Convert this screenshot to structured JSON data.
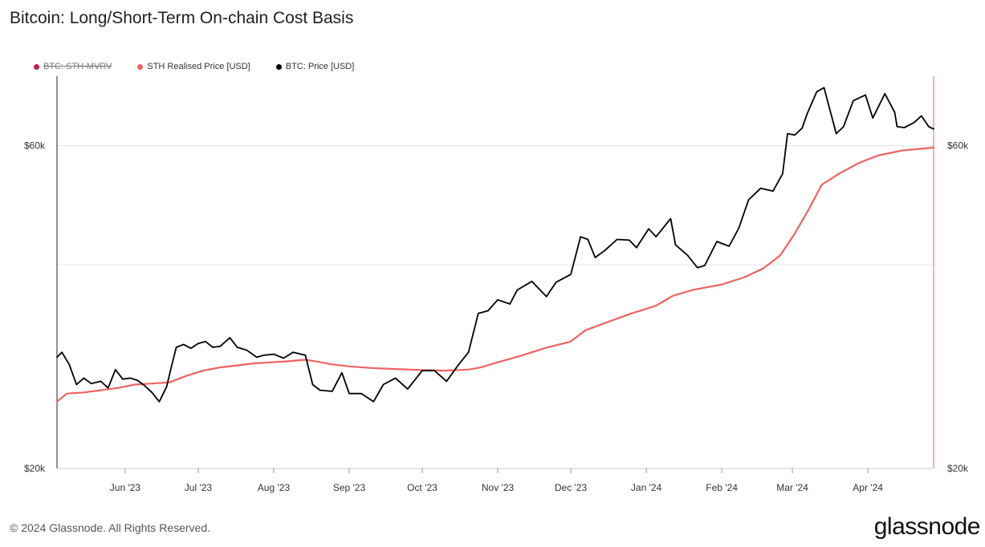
{
  "title": "Bitcoin: Long/Short-Term On-chain Cost Basis",
  "legend": [
    {
      "label": "BTC: STH-MVRV",
      "color": "#c2185b",
      "disabled": true
    },
    {
      "label": "STH Realised Price [USD]",
      "color": "#f06262",
      "disabled": false
    },
    {
      "label": "BTC: Price [USD]",
      "color": "#000000",
      "disabled": false
    }
  ],
  "footer": "© 2024 Glassnode. All Rights Reserved.",
  "brand": "glassnode",
  "chart_data": {
    "type": "line",
    "y_scale": "log",
    "ylim": [
      20000,
      76000
    ],
    "y_ticks": [
      {
        "value": 20000,
        "label": "$20k"
      },
      {
        "value": 60000,
        "label": "$60k"
      }
    ],
    "xlim": [
      "2023-05-04",
      "2024-04-28"
    ],
    "x_ticks": [
      {
        "date": "2023-06-01",
        "label": "Jun '23"
      },
      {
        "date": "2023-07-01",
        "label": "Jul '23"
      },
      {
        "date": "2023-08-01",
        "label": "Aug '23"
      },
      {
        "date": "2023-09-01",
        "label": "Sep '23"
      },
      {
        "date": "2023-10-01",
        "label": "Oct '23"
      },
      {
        "date": "2023-11-01",
        "label": "Nov '23"
      },
      {
        "date": "2023-12-01",
        "label": "Dec '23"
      },
      {
        "date": "2024-01-01",
        "label": "Jan '24"
      },
      {
        "date": "2024-02-01",
        "label": "Feb '24"
      },
      {
        "date": "2024-03-01",
        "label": "Mar '24"
      },
      {
        "date": "2024-04-01",
        "label": "Apr '24"
      }
    ],
    "grid": true,
    "legend_position": "top-left",
    "series": [
      {
        "name": "STH Realised Price [USD]",
        "color": "#f06262",
        "points": [
          [
            "2023-05-04",
            25100
          ],
          [
            "2023-05-08",
            25800
          ],
          [
            "2023-05-15",
            25900
          ],
          [
            "2023-05-22",
            26100
          ],
          [
            "2023-05-29",
            26300
          ],
          [
            "2023-06-05",
            26600
          ],
          [
            "2023-06-12",
            26700
          ],
          [
            "2023-06-19",
            26800
          ],
          [
            "2023-06-26",
            27400
          ],
          [
            "2023-07-03",
            27900
          ],
          [
            "2023-07-10",
            28200
          ],
          [
            "2023-07-17",
            28400
          ],
          [
            "2023-07-24",
            28600
          ],
          [
            "2023-07-31",
            28700
          ],
          [
            "2023-08-07",
            28800
          ],
          [
            "2023-08-14",
            28950
          ],
          [
            "2023-08-18",
            28800
          ],
          [
            "2023-08-25",
            28500
          ],
          [
            "2023-09-01",
            28300
          ],
          [
            "2023-09-10",
            28150
          ],
          [
            "2023-09-20",
            28050
          ],
          [
            "2023-10-01",
            27950
          ],
          [
            "2023-10-10",
            27900
          ],
          [
            "2023-10-20",
            28000
          ],
          [
            "2023-10-25",
            28200
          ],
          [
            "2023-11-01",
            28700
          ],
          [
            "2023-11-10",
            29300
          ],
          [
            "2023-11-20",
            30100
          ],
          [
            "2023-12-01",
            30800
          ],
          [
            "2023-12-07",
            32000
          ],
          [
            "2023-12-15",
            32800
          ],
          [
            "2023-12-25",
            33800
          ],
          [
            "2024-01-05",
            34800
          ],
          [
            "2024-01-12",
            36000
          ],
          [
            "2024-01-20",
            36700
          ],
          [
            "2024-02-01",
            37400
          ],
          [
            "2024-02-10",
            38300
          ],
          [
            "2024-02-18",
            39500
          ],
          [
            "2024-02-25",
            41300
          ],
          [
            "2024-03-02",
            44500
          ],
          [
            "2024-03-08",
            48500
          ],
          [
            "2024-03-13",
            52500
          ],
          [
            "2024-03-20",
            54500
          ],
          [
            "2024-03-28",
            56500
          ],
          [
            "2024-04-05",
            58000
          ],
          [
            "2024-04-15",
            59000
          ],
          [
            "2024-04-28",
            59600
          ]
        ]
      },
      {
        "name": "BTC: Price [USD]",
        "color": "#000000",
        "points": [
          [
            "2023-05-04",
            29200
          ],
          [
            "2023-05-06",
            29700
          ],
          [
            "2023-05-09",
            28500
          ],
          [
            "2023-05-12",
            26600
          ],
          [
            "2023-05-15",
            27200
          ],
          [
            "2023-05-18",
            26700
          ],
          [
            "2023-05-22",
            26900
          ],
          [
            "2023-05-25",
            26300
          ],
          [
            "2023-05-28",
            28000
          ],
          [
            "2023-05-31",
            27100
          ],
          [
            "2023-06-03",
            27200
          ],
          [
            "2023-06-06",
            27000
          ],
          [
            "2023-06-09",
            26500
          ],
          [
            "2023-06-12",
            25900
          ],
          [
            "2023-06-15",
            25100
          ],
          [
            "2023-06-18",
            26400
          ],
          [
            "2023-06-20",
            28300
          ],
          [
            "2023-06-22",
            30200
          ],
          [
            "2023-06-25",
            30500
          ],
          [
            "2023-06-28",
            30100
          ],
          [
            "2023-07-01",
            30600
          ],
          [
            "2023-07-04",
            30800
          ],
          [
            "2023-07-07",
            30200
          ],
          [
            "2023-07-10",
            30300
          ],
          [
            "2023-07-14",
            31200
          ],
          [
            "2023-07-17",
            30200
          ],
          [
            "2023-07-21",
            29900
          ],
          [
            "2023-07-25",
            29200
          ],
          [
            "2023-07-28",
            29400
          ],
          [
            "2023-08-01",
            29500
          ],
          [
            "2023-08-05",
            29100
          ],
          [
            "2023-08-09",
            29700
          ],
          [
            "2023-08-14",
            29400
          ],
          [
            "2023-08-17",
            26600
          ],
          [
            "2023-08-20",
            26100
          ],
          [
            "2023-08-25",
            26000
          ],
          [
            "2023-08-29",
            27700
          ],
          [
            "2023-09-01",
            25800
          ],
          [
            "2023-09-06",
            25800
          ],
          [
            "2023-09-11",
            25100
          ],
          [
            "2023-09-15",
            26600
          ],
          [
            "2023-09-20",
            27200
          ],
          [
            "2023-09-25",
            26200
          ],
          [
            "2023-10-01",
            27900
          ],
          [
            "2023-10-06",
            27900
          ],
          [
            "2023-10-11",
            26900
          ],
          [
            "2023-10-16",
            28500
          ],
          [
            "2023-10-20",
            29700
          ],
          [
            "2023-10-24",
            33900
          ],
          [
            "2023-10-28",
            34200
          ],
          [
            "2023-11-01",
            35500
          ],
          [
            "2023-11-06",
            35000
          ],
          [
            "2023-11-09",
            36700
          ],
          [
            "2023-11-15",
            37800
          ],
          [
            "2023-11-21",
            35900
          ],
          [
            "2023-11-25",
            37700
          ],
          [
            "2023-12-01",
            38700
          ],
          [
            "2023-12-05",
            44000
          ],
          [
            "2023-12-08",
            43600
          ],
          [
            "2023-12-11",
            41000
          ],
          [
            "2023-12-15",
            42000
          ],
          [
            "2023-12-20",
            43600
          ],
          [
            "2023-12-25",
            43500
          ],
          [
            "2023-12-28",
            42400
          ],
          [
            "2024-01-02",
            45200
          ],
          [
            "2024-01-05",
            44000
          ],
          [
            "2024-01-11",
            46800
          ],
          [
            "2024-01-13",
            42800
          ],
          [
            "2024-01-18",
            41300
          ],
          [
            "2024-01-22",
            39600
          ],
          [
            "2024-01-25",
            39900
          ],
          [
            "2024-01-30",
            43300
          ],
          [
            "2024-02-04",
            42600
          ],
          [
            "2024-02-08",
            45300
          ],
          [
            "2024-02-12",
            49900
          ],
          [
            "2024-02-17",
            51900
          ],
          [
            "2024-02-22",
            51400
          ],
          [
            "2024-02-26",
            54500
          ],
          [
            "2024-02-28",
            62500
          ],
          [
            "2024-03-02",
            62200
          ],
          [
            "2024-03-05",
            63700
          ],
          [
            "2024-03-07",
            66800
          ],
          [
            "2024-03-11",
            72100
          ],
          [
            "2024-03-14",
            73100
          ],
          [
            "2024-03-19",
            62500
          ],
          [
            "2024-03-22",
            64000
          ],
          [
            "2024-03-26",
            69900
          ],
          [
            "2024-03-31",
            71300
          ],
          [
            "2024-04-03",
            65900
          ],
          [
            "2024-04-08",
            71600
          ],
          [
            "2024-04-12",
            67200
          ],
          [
            "2024-04-13",
            64000
          ],
          [
            "2024-04-16",
            63800
          ],
          [
            "2024-04-20",
            64900
          ],
          [
            "2024-04-23",
            66400
          ],
          [
            "2024-04-26",
            64000
          ],
          [
            "2024-04-28",
            63500
          ]
        ]
      }
    ]
  }
}
